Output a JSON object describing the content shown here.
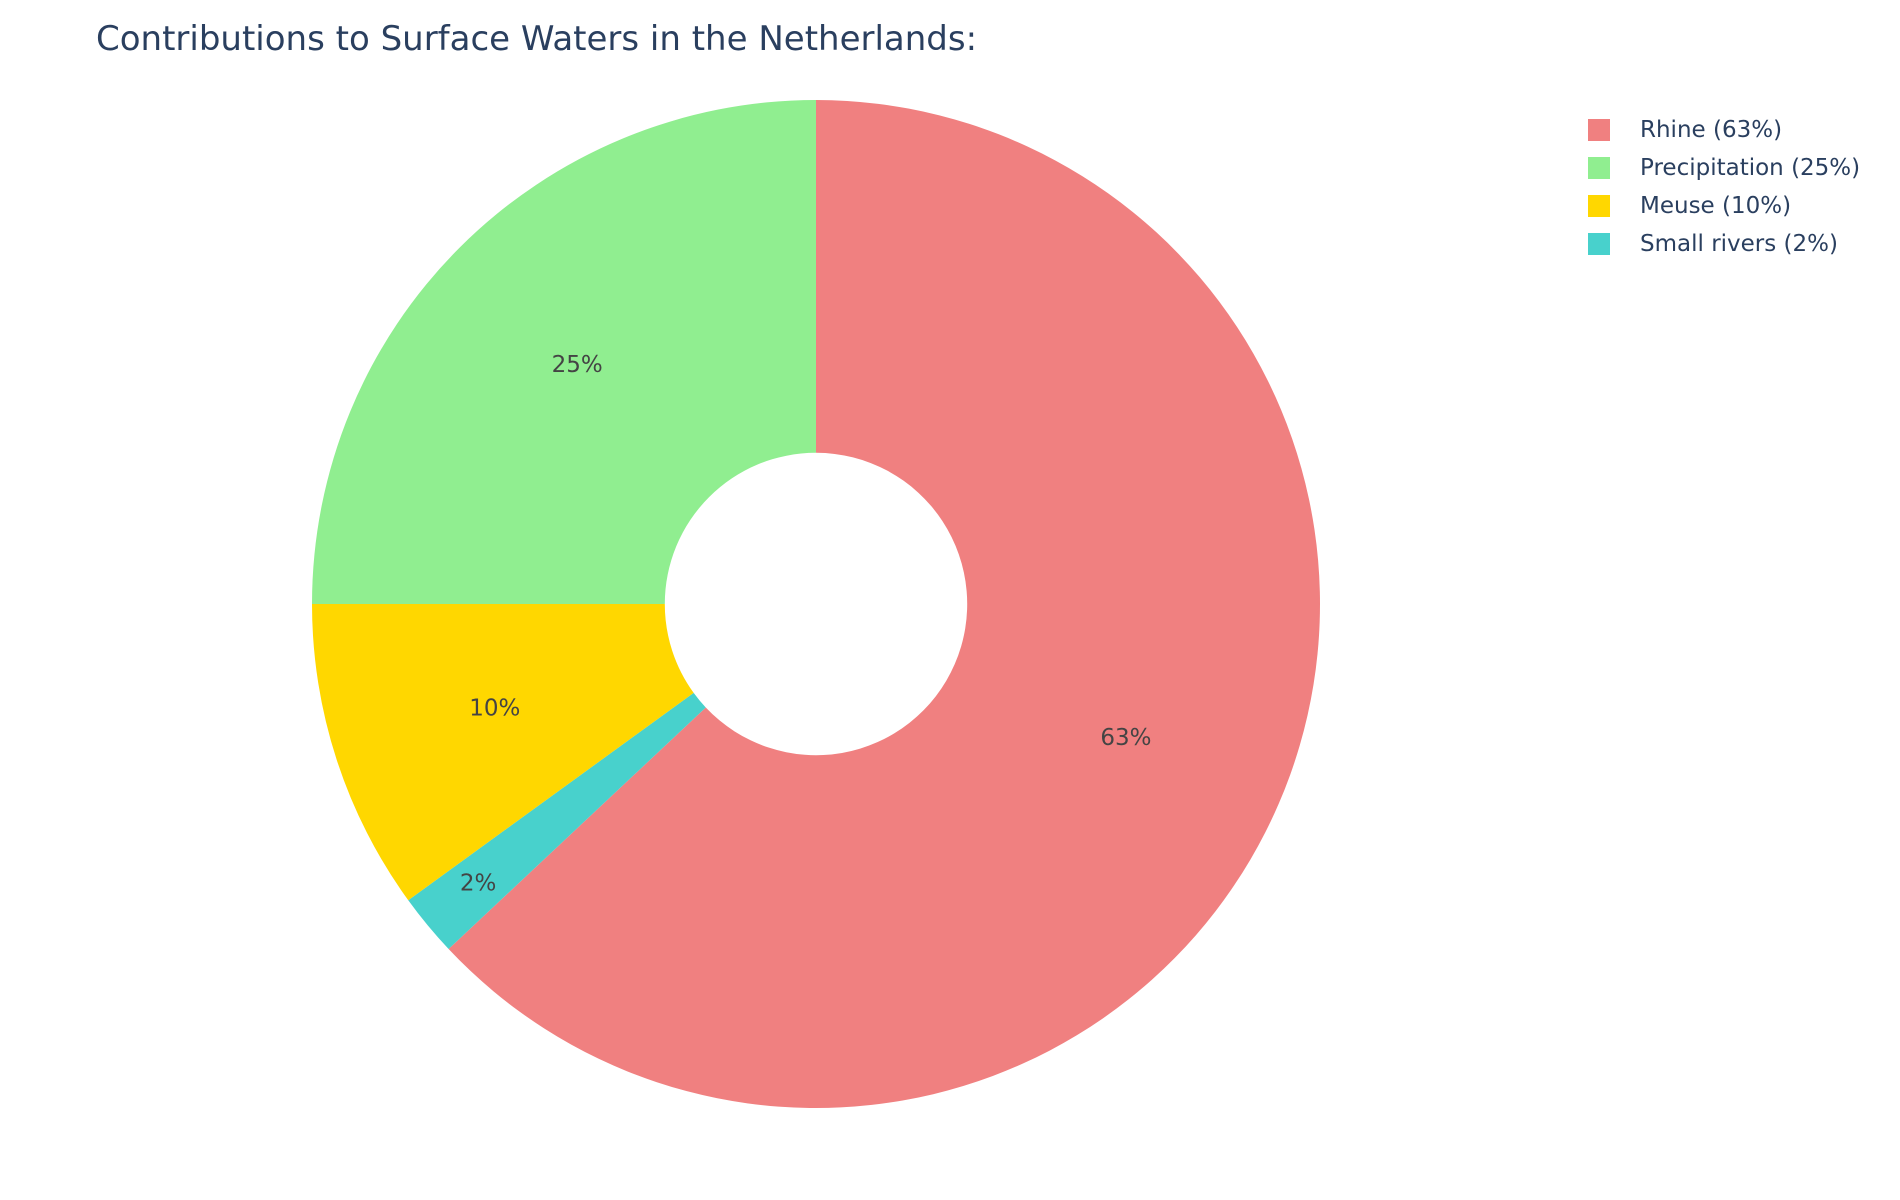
{
  "chart_data": {
    "type": "pie",
    "title": "Contributions to Surface Waters in the Netherlands:",
    "hole": 0.3,
    "slices": [
      {
        "label": "Rhine",
        "value": 63,
        "text": "63%",
        "legend": "Rhine (63%)",
        "color": "#f08080"
      },
      {
        "label": "Small rivers",
        "value": 2,
        "text": "2%",
        "legend": "Small rivers (2%)",
        "color": "#48d1cc"
      },
      {
        "label": "Meuse",
        "value": 10,
        "text": "10%",
        "legend": "Meuse (10%)",
        "color": "#ffd700"
      },
      {
        "label": "Precipitation",
        "value": 25,
        "text": "25%",
        "legend": "Precipitation (25%)",
        "color": "#90ee90"
      }
    ],
    "legend_order": [
      "Rhine",
      "Precipitation",
      "Meuse",
      "Small rivers"
    ],
    "legend_position": "top-right",
    "direction": "clockwise",
    "start": "top"
  }
}
